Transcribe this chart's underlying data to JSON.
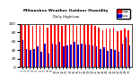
{
  "title": "Milwaukee Weather Outdoor Humidity",
  "subtitle": "Daily High/Low",
  "high_color": "#ff0000",
  "low_color": "#0000cc",
  "background_color": "#ffffff",
  "grid_color": "#cccccc",
  "ylim": [
    0,
    100
  ],
  "yticks": [
    0,
    20,
    40,
    60,
    80,
    100
  ],
  "dates": [
    "1",
    "2",
    "3",
    "4",
    "5",
    "6",
    "7",
    "8",
    "9",
    "10",
    "11",
    "12",
    "13",
    "14",
    "15",
    "16",
    "17",
    "18",
    "19",
    "20",
    "21",
    "22",
    "23",
    "24",
    "25",
    "26",
    "27",
    "28",
    "29",
    "30"
  ],
  "highs": [
    98,
    97,
    97,
    96,
    98,
    95,
    98,
    91,
    98,
    97,
    98,
    96,
    97,
    98,
    98,
    95,
    98,
    97,
    97,
    97,
    95,
    90,
    85,
    88,
    88,
    90,
    82,
    85,
    88,
    85
  ],
  "lows": [
    62,
    42,
    40,
    42,
    48,
    35,
    55,
    32,
    55,
    52,
    58,
    48,
    50,
    53,
    58,
    52,
    55,
    52,
    52,
    50,
    48,
    42,
    45,
    38,
    42,
    40,
    35,
    55,
    68,
    50
  ]
}
